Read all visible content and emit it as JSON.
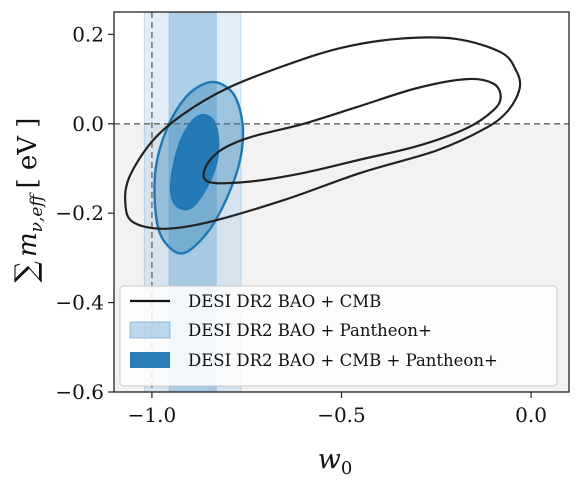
{
  "chart_data": {
    "type": "contour",
    "xlabel_main": "w",
    "xlabel_sub": "0",
    "ylabel_sum": "∑",
    "ylabel_m": "m",
    "ylabel_sub": "ν,eff",
    "ylabel_unit": "[ eV ]",
    "xlim": [
      -1.1,
      0.1
    ],
    "ylim": [
      -0.6,
      0.25
    ],
    "xticks": [
      -1.0,
      -0.5,
      0.0
    ],
    "xtick_labels": [
      "−1.0",
      "−0.5",
      "0.0"
    ],
    "yticks": [
      0.2,
      0.0,
      -0.2,
      -0.4,
      -0.6
    ],
    "ytick_labels": [
      "0.2",
      "0.0",
      "−0.2",
      "−0.4",
      "−0.6"
    ],
    "reference_lines": {
      "x": -1.0,
      "y": 0.0
    },
    "shaded_region": {
      "y_from": -0.6,
      "y_to": 0.0,
      "color": "#f2f2f2"
    },
    "legend_position": "lower-left",
    "series": [
      {
        "name": "DESI DR2 BAO + CMB",
        "style": "line",
        "color": "#222222",
        "contours": [
          {
            "level": "1sigma",
            "points": [
              [
                -0.86,
                -0.1
              ],
              [
                -0.82,
                -0.06
              ],
              [
                -0.74,
                -0.03
              ],
              [
                -0.6,
                0.0
              ],
              [
                -0.45,
                0.04
              ],
              [
                -0.3,
                0.08
              ],
              [
                -0.17,
                0.1
              ],
              [
                -0.1,
                0.09
              ],
              [
                -0.08,
                0.06
              ],
              [
                -0.1,
                0.03
              ],
              [
                -0.17,
                -0.01
              ],
              [
                -0.3,
                -0.05
              ],
              [
                -0.45,
                -0.08
              ],
              [
                -0.6,
                -0.11
              ],
              [
                -0.75,
                -0.13
              ],
              [
                -0.85,
                -0.13
              ]
            ]
          },
          {
            "level": "2sigma",
            "points": [
              [
                -1.07,
                -0.18
              ],
              [
                -1.06,
                -0.12
              ],
              [
                -1.0,
                -0.04
              ],
              [
                -0.92,
                0.02
              ],
              [
                -0.8,
                0.08
              ],
              [
                -0.65,
                0.13
              ],
              [
                -0.5,
                0.17
              ],
              [
                -0.35,
                0.19
              ],
              [
                -0.2,
                0.19
              ],
              [
                -0.08,
                0.16
              ],
              [
                -0.04,
                0.12
              ],
              [
                -0.03,
                0.08
              ],
              [
                -0.06,
                0.03
              ],
              [
                -0.12,
                -0.01
              ],
              [
                -0.25,
                -0.06
              ],
              [
                -0.45,
                -0.11
              ],
              [
                -0.65,
                -0.17
              ],
              [
                -0.85,
                -0.22
              ],
              [
                -0.97,
                -0.235
              ],
              [
                -1.05,
                -0.22
              ]
            ]
          }
        ]
      },
      {
        "name": "DESI DR2 BAO + Pantheon+",
        "style": "band",
        "color": "#6fa8d8",
        "bands": [
          {
            "level": "1sigma",
            "x_from": -0.955,
            "x_to": -0.83,
            "opacity": 0.45
          },
          {
            "level": "2sigma",
            "x_from": -1.02,
            "x_to": -0.765,
            "opacity": 0.2
          }
        ]
      },
      {
        "name": "DESI DR2 BAO + CMB + Pantheon+",
        "style": "filled",
        "color": "#1f77b4",
        "contours": [
          {
            "level": "1sigma",
            "points": [
              [
                -0.94,
                -0.18
              ],
              [
                -0.95,
                -0.13
              ],
              [
                -0.93,
                -0.05
              ],
              [
                -0.9,
                0.0
              ],
              [
                -0.87,
                0.02
              ],
              [
                -0.84,
                0.01
              ],
              [
                -0.825,
                -0.03
              ],
              [
                -0.83,
                -0.09
              ],
              [
                -0.86,
                -0.15
              ],
              [
                -0.9,
                -0.19
              ]
            ]
          },
          {
            "level": "2sigma",
            "points": [
              [
                -0.97,
                -0.26
              ],
              [
                -0.99,
                -0.2
              ],
              [
                -0.99,
                -0.1
              ],
              [
                -0.96,
                -0.01
              ],
              [
                -0.91,
                0.06
              ],
              [
                -0.86,
                0.09
              ],
              [
                -0.82,
                0.09
              ],
              [
                -0.78,
                0.06
              ],
              [
                -0.76,
                -0.01
              ],
              [
                -0.77,
                -0.09
              ],
              [
                -0.81,
                -0.18
              ],
              [
                -0.86,
                -0.25
              ],
              [
                -0.92,
                -0.29
              ]
            ]
          }
        ]
      }
    ]
  }
}
